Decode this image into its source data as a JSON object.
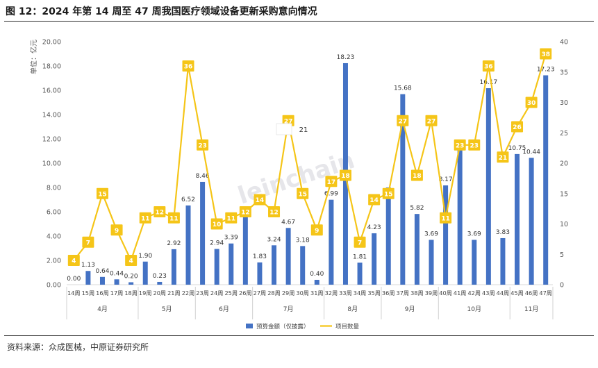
{
  "title": "图 12：2024 年第 14 周至 47 周我国医疗领域设备更新采购意向情况",
  "source": "资料来源：众成医械，中原证券研究所",
  "chart_data": {
    "type": "bar+line",
    "categories": [
      "14周",
      "15周",
      "16周",
      "17周",
      "18周",
      "19周",
      "20周",
      "21周",
      "22周",
      "23周",
      "24周",
      "25周",
      "26周",
      "27周",
      "28周",
      "29周",
      "30周",
      "31周",
      "32周",
      "33周",
      "34周",
      "35周",
      "36周",
      "37周",
      "38周",
      "39周",
      "40周",
      "41周",
      "42周",
      "43周",
      "44周",
      "45周",
      "46周",
      "47周"
    ],
    "month_groups": [
      {
        "label": "4月",
        "start": 0,
        "end": 4
      },
      {
        "label": "5月",
        "start": 5,
        "end": 8
      },
      {
        "label": "6月",
        "start": 9,
        "end": 12
      },
      {
        "label": "7月",
        "start": 13,
        "end": 17
      },
      {
        "label": "8月",
        "start": 18,
        "end": 21
      },
      {
        "label": "9月",
        "start": 22,
        "end": 25
      },
      {
        "label": "10月",
        "start": 26,
        "end": 30
      },
      {
        "label": "11月",
        "start": 31,
        "end": 33
      }
    ],
    "series": [
      {
        "name": "预算金额（仅披露）",
        "type": "bar",
        "axis": "left",
        "color": "#4472C4",
        "values": [
          0.0,
          1.13,
          0.64,
          0.44,
          0.2,
          1.9,
          0.23,
          2.92,
          6.52,
          8.46,
          2.94,
          3.39,
          6.24,
          1.83,
          3.24,
          4.67,
          3.18,
          0.4,
          6.99,
          18.23,
          1.81,
          4.23,
          8.0,
          15.68,
          5.82,
          3.69,
          8.17,
          11.79,
          3.69,
          16.17,
          3.83,
          10.75,
          10.44,
          17.23
        ],
        "labels": [
          "0.00",
          "1.13",
          "0.64",
          "0.44",
          "0.20",
          "1.90",
          "0.23",
          "2.92",
          "6.52",
          "8.46",
          "2.94",
          "3.39",
          "",
          "1.83",
          "3.24",
          "4.67",
          "3.18",
          "0.40",
          "6.99",
          "18.23",
          "1.81",
          "4.23",
          "",
          "15.68",
          "5.82",
          "3.69",
          "8.17",
          "",
          "3.69",
          "16.17",
          "3.83",
          "10.75",
          "10.44",
          "17.23"
        ]
      },
      {
        "name": "项目数量",
        "type": "line",
        "axis": "right",
        "color": "#F5C518",
        "values": [
          4,
          7,
          15,
          9,
          4,
          11,
          12,
          11,
          36,
          23,
          10,
          11,
          12,
          14,
          12,
          27,
          15,
          9,
          17,
          18,
          7,
          14,
          15,
          27,
          18,
          27,
          11,
          23,
          23,
          36,
          21,
          26,
          30,
          38
        ]
      }
    ],
    "left_axis": {
      "label": "单位：亿元",
      "min": 0,
      "max": 20,
      "step": 2,
      "ticks": [
        "0.00",
        "2.00",
        "4.00",
        "6.00",
        "8.00",
        "10.00",
        "12.00",
        "14.00",
        "16.00",
        "18.00",
        "20.00"
      ]
    },
    "right_axis": {
      "min": 0,
      "max": 40,
      "step": 5,
      "ticks": [
        "0",
        "5",
        "10",
        "15",
        "20",
        "25",
        "30",
        "35",
        "40"
      ]
    },
    "annotation": "21",
    "legend_position": "bottom",
    "grid": false
  }
}
